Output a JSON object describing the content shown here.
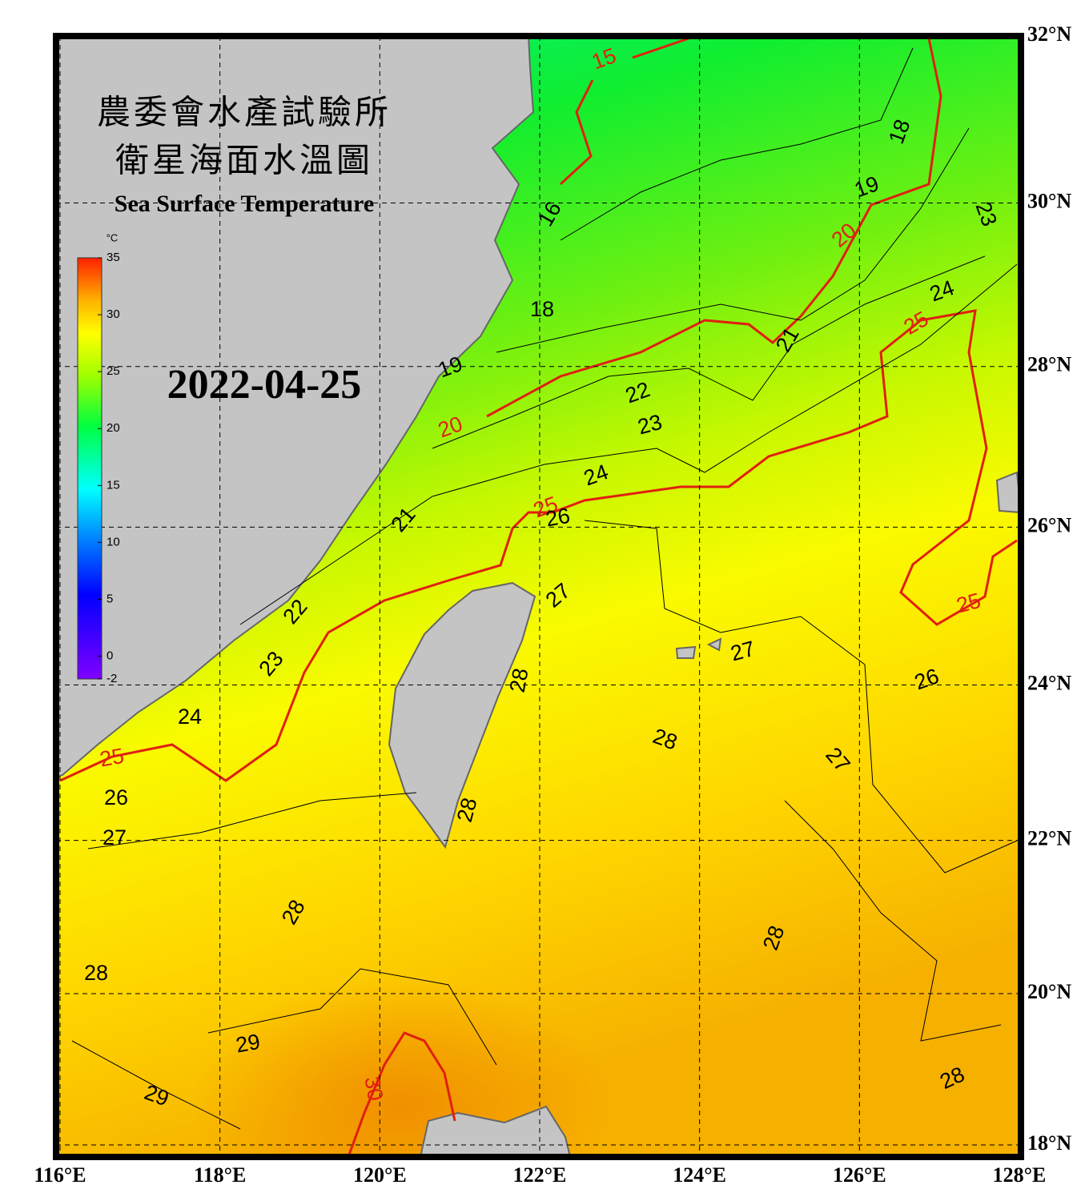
{
  "header": {
    "title_zh_1": "農委會水產試驗所",
    "title_zh_2": "衛星海面水溫圖",
    "title_en": "Sea Surface Temperature",
    "date": "2022-04-25"
  },
  "colorbar": {
    "unit": "°C",
    "ticks": [
      35,
      30,
      25,
      20,
      15,
      10,
      5,
      0,
      -2
    ]
  },
  "map": {
    "xlim": [
      116,
      128
    ],
    "ylim": [
      18,
      32
    ],
    "lon_ticks": [
      {
        "value": 116,
        "label": "116°E"
      },
      {
        "value": 118,
        "label": "118°E"
      },
      {
        "value": 120,
        "label": "120°E"
      },
      {
        "value": 122,
        "label": "122°E"
      },
      {
        "value": 124,
        "label": "124°E"
      },
      {
        "value": 126,
        "label": "126°E"
      },
      {
        "value": 128,
        "label": "128°E"
      }
    ],
    "lat_ticks": [
      {
        "value": 32,
        "label": "32°N"
      },
      {
        "value": 30,
        "label": "30°N"
      },
      {
        "value": 28,
        "label": "28°N"
      },
      {
        "value": 26,
        "label": "26°N"
      },
      {
        "value": 24,
        "label": "24°N"
      },
      {
        "value": 22,
        "label": "22°N"
      },
      {
        "value": 20,
        "label": "20°N"
      },
      {
        "value": 18,
        "label": "18°N"
      }
    ]
  },
  "contour_labels": [
    15,
    18,
    16,
    19,
    20,
    23,
    24,
    25,
    18,
    21,
    19,
    22,
    20,
    23,
    24,
    25,
    26,
    21,
    22,
    27,
    25,
    23,
    27,
    28,
    26,
    24,
    28,
    27,
    25,
    26,
    28,
    27,
    28,
    28,
    28,
    29,
    30,
    29,
    28
  ]
}
